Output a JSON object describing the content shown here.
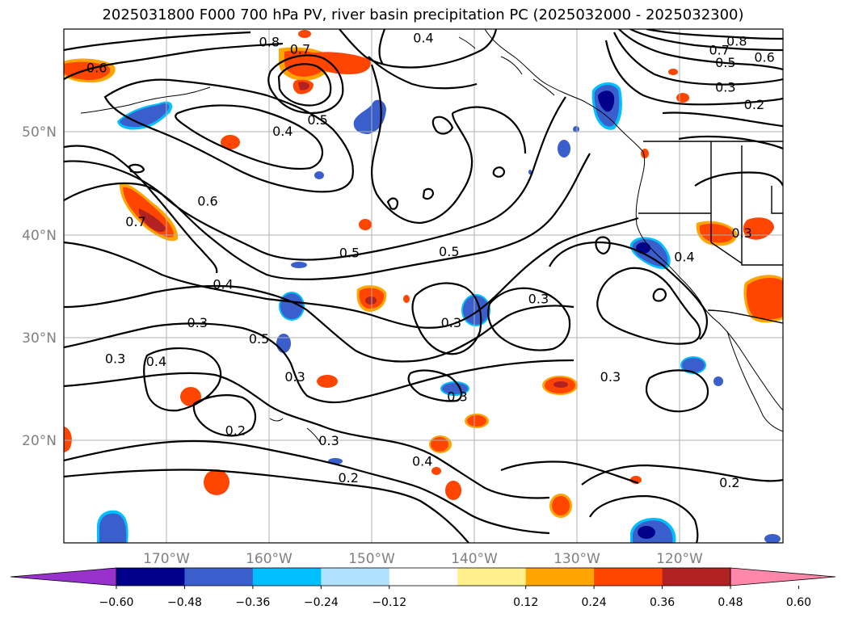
{
  "title": "2025031800 F000 700 hPa PV, river basin precipitation PC (2025032000 - 2025032300)",
  "map": {
    "lat_ticks": [
      "50°N",
      "40°N",
      "30°N",
      "20°N"
    ],
    "lon_ticks": [
      "170°W",
      "160°W",
      "150°W",
      "140°W",
      "130°W",
      "120°W"
    ],
    "gridlines": true,
    "contour_labels": [
      {
        "text": "0.8",
        "lon": -160,
        "lat": 58.7
      },
      {
        "text": "0.7",
        "lon": -157,
        "lat": 58
      },
      {
        "text": "0.4",
        "lon": -145,
        "lat": 59.1
      },
      {
        "text": "0.6",
        "lon": -176.8,
        "lat": 56.2
      },
      {
        "text": "0.5",
        "lon": -155.3,
        "lat": 51.1
      },
      {
        "text": "0.4",
        "lon": -158.7,
        "lat": 50
      },
      {
        "text": "0.6",
        "lon": -166,
        "lat": 43.2
      },
      {
        "text": "0.7",
        "lon": -173,
        "lat": 41.2
      },
      {
        "text": "0.5",
        "lon": -152.2,
        "lat": 38.2
      },
      {
        "text": "0.5",
        "lon": -142.5,
        "lat": 38.3
      },
      {
        "text": "0.4",
        "lon": -164.5,
        "lat": 35.1
      },
      {
        "text": "0.3",
        "lon": -167,
        "lat": 31.4
      },
      {
        "text": "0.5",
        "lon": -161,
        "lat": 29.8
      },
      {
        "text": "0.3",
        "lon": -175,
        "lat": 27.9
      },
      {
        "text": "0.4",
        "lon": -171,
        "lat": 27.6
      },
      {
        "text": "0.3",
        "lon": -157.5,
        "lat": 26.1
      },
      {
        "text": "0.3",
        "lon": -142.3,
        "lat": 31.4
      },
      {
        "text": "0.3",
        "lon": -133.8,
        "lat": 33.7
      },
      {
        "text": "0.3",
        "lon": -141.7,
        "lat": 24.2
      },
      {
        "text": "0.2",
        "lon": -163.3,
        "lat": 20.9
      },
      {
        "text": "0.3",
        "lon": -154.2,
        "lat": 19.9
      },
      {
        "text": "0.4",
        "lon": -145.1,
        "lat": 17.9
      },
      {
        "text": "0.2",
        "lon": -152.3,
        "lat": 16.3
      },
      {
        "text": "0.8",
        "lon": -114.5,
        "lat": 58.8
      },
      {
        "text": "0.7",
        "lon": -116.2,
        "lat": 57.9
      },
      {
        "text": "0.6",
        "lon": -111.8,
        "lat": 57.2
      },
      {
        "text": "0.5",
        "lon": -115.6,
        "lat": 56.7
      },
      {
        "text": "0.3",
        "lon": -115.6,
        "lat": 54.3
      },
      {
        "text": "0.2",
        "lon": -112.8,
        "lat": 52.6
      },
      {
        "text": "0.4",
        "lon": -119.6,
        "lat": 37.8
      },
      {
        "text": "0.3",
        "lon": -114,
        "lat": 40.1
      },
      {
        "text": "0.3",
        "lon": -126.8,
        "lat": 26.1
      },
      {
        "text": "0.2",
        "lon": -115.2,
        "lat": 15.8
      }
    ]
  },
  "colorbar": {
    "tick_labels": [
      "−0.60",
      "−0.48",
      "−0.36",
      "−0.24",
      "−0.12",
      "0.12",
      "0.24",
      "0.36",
      "0.48",
      "0.60"
    ],
    "colors": [
      "#9932cc",
      "#00008b",
      "#3a5fcd",
      "#00bfff",
      "#b0e2ff",
      "#ffffff",
      "#fff08c",
      "#ffa500",
      "#ff4500",
      "#b22222",
      "#ff88aa"
    ]
  }
}
